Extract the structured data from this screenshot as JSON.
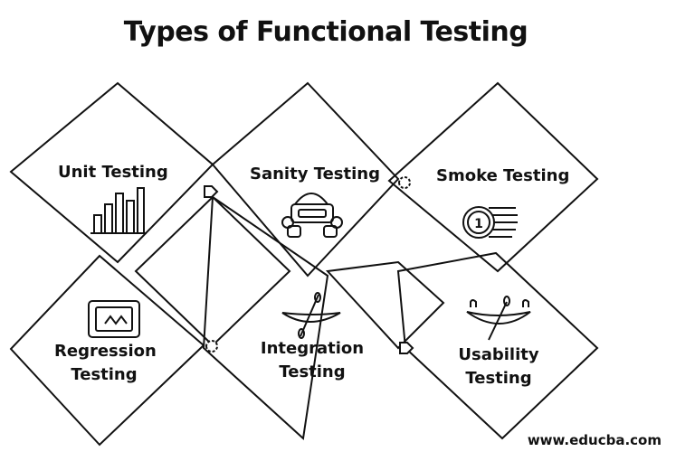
{
  "title": "Types of Functional Testing",
  "items": [
    {
      "label": "Unit Testing",
      "icon": "bar-chart-icon"
    },
    {
      "label": "Sanity Testing",
      "icon": "robot-icon"
    },
    {
      "label": "Smoke Testing",
      "icon": "coin-stack-icon"
    },
    {
      "label": "Regression Testing",
      "label_lines": [
        "Regression",
        "Testing"
      ],
      "icon": "tablet-icon"
    },
    {
      "label": "Integration Testing",
      "label_lines": [
        "Integration",
        "Testing"
      ],
      "icon": "canoe-icon"
    },
    {
      "label": "Usability Testing",
      "label_lines": [
        "Usability",
        "Testing"
      ],
      "icon": "canoe-paddle-icon"
    }
  ],
  "watermark": "www.educba.com"
}
